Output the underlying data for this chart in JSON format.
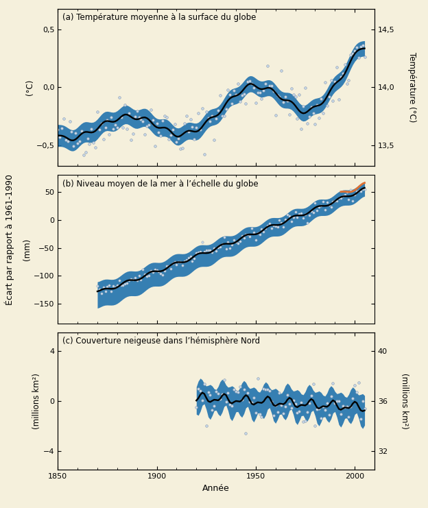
{
  "bg_color": "#f5f0dc",
  "panel_a": {
    "title": "(a) Température moyenne à la surface du globe",
    "ylabel_left": "(°C)",
    "ylabel_right": "Température (°C)",
    "ylim_left": [
      -0.68,
      0.68
    ],
    "ylim_right": [
      13.32,
      14.68
    ],
    "yticks_left": [
      -0.5,
      0.0,
      0.5
    ],
    "yticks_right": [
      13.5,
      14.0,
      14.5
    ]
  },
  "panel_b": {
    "title": "(b) Niveau moyen de la mer à l’échelle du globe",
    "ylabel_left": "(mm)",
    "ylim_left": [
      -185,
      80
    ],
    "yticks_left": [
      -150,
      -100,
      -50,
      0,
      50
    ]
  },
  "panel_c": {
    "title": "(c) Couverture neigeuse dans l’hémisphère Nord",
    "ylabel_left": "(millions km²)",
    "ylabel_right": "(millions km²)",
    "ylim_left": [
      -5.5,
      5.5
    ],
    "ylim_right": [
      30.5,
      41.5
    ],
    "yticks_left": [
      -4,
      0,
      4
    ],
    "yticks_right": [
      32,
      36,
      40
    ]
  },
  "xlabel": "Année",
  "shared_ylabel": "Écart par rapport à 1961-1990",
  "xlim": [
    1850,
    2010
  ],
  "xticks": [
    1850,
    1900,
    1950,
    2000
  ],
  "band_color": "#1b6fad",
  "line_color": "#000000",
  "scatter_facecolor": "#c8d8ea",
  "scatter_edgecolor": "#8899aa",
  "orange_color": "#e07030"
}
